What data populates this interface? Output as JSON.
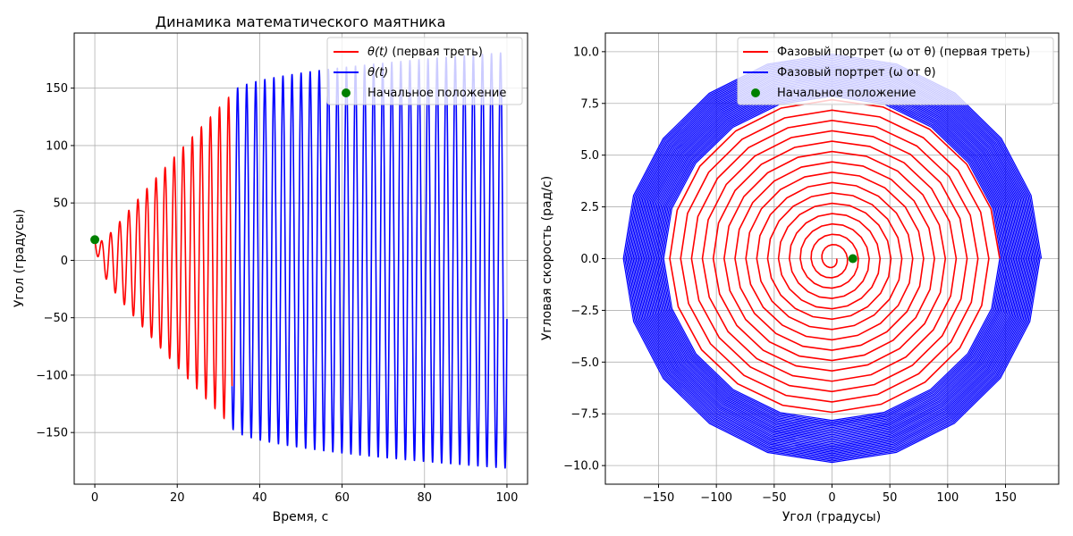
{
  "chart_data": [
    {
      "type": "line",
      "title": "Динамика математического маятника",
      "xlabel": "Время, с",
      "ylabel": "Угол (градусы)",
      "xlim": [
        -5,
        105
      ],
      "ylim": [
        -195,
        198
      ],
      "xticks": [
        0,
        20,
        40,
        60,
        80,
        100
      ],
      "yticks": [
        -150,
        -100,
        -50,
        0,
        50,
        100,
        150
      ],
      "xtick_labels": [
        "0",
        "20",
        "40",
        "60",
        "80",
        "100"
      ],
      "ytick_labels": [
        "−150",
        "−100",
        "−50",
        "0",
        "50",
        "100",
        "150"
      ],
      "grid": true,
      "legend_position": "top-right",
      "initial_point": {
        "x": 0,
        "y": 18
      },
      "oscillation_period": 2.2,
      "series": [
        {
          "name_main": "θ(t)",
          "name_suffix": " (первая треть)",
          "color": "#ff0000",
          "t_range": [
            0,
            33.3
          ],
          "envelope_start": 3,
          "envelope_end": 145
        },
        {
          "name_main": "θ(t)",
          "name_suffix": "",
          "color": "#0000ff",
          "t_range": [
            33.3,
            100
          ],
          "envelope_start": 145,
          "envelope_end": 181
        },
        {
          "name_main": "Начальное положение",
          "name_suffix": "",
          "color": "#008000",
          "marker": "circle"
        }
      ]
    },
    {
      "type": "line",
      "title": "",
      "xlabel": "Угол (градусы)",
      "ylabel": "Угловая скорость (рад/с)",
      "xlim": [
        -196,
        196
      ],
      "ylim": [
        -10.9,
        10.9
      ],
      "xticks": [
        -150,
        -100,
        -50,
        0,
        50,
        100,
        150
      ],
      "yticks": [
        -10,
        -7.5,
        -5,
        -2.5,
        0,
        2.5,
        5,
        7.5,
        10
      ],
      "xtick_labels": [
        "−150",
        "−100",
        "−50",
        "0",
        "50",
        "100",
        "150"
      ],
      "ytick_labels": [
        "−10.0",
        "−7.5",
        "−5.0",
        "−2.5",
        "0.0",
        "2.5",
        "5.0",
        "7.5",
        "10.0"
      ],
      "grid": true,
      "legend_position": "top-right",
      "initial_point": {
        "x": 18,
        "y": 0
      },
      "series": [
        {
          "name_main": "Фазовый портрет (ω от θ)",
          "name_suffix": " (первая треть)",
          "color": "#ff0000",
          "max_angle": 145,
          "max_omega": 7.8,
          "loops": 15
        },
        {
          "name_main": "Фазовый портрет (ω от θ)",
          "name_suffix": "",
          "color": "#0000ff",
          "max_angle": 181,
          "max_omega": 9.9,
          "loops": 30
        },
        {
          "name_main": "Начальное положение",
          "name_suffix": "",
          "color": "#008000",
          "marker": "circle"
        }
      ]
    }
  ]
}
